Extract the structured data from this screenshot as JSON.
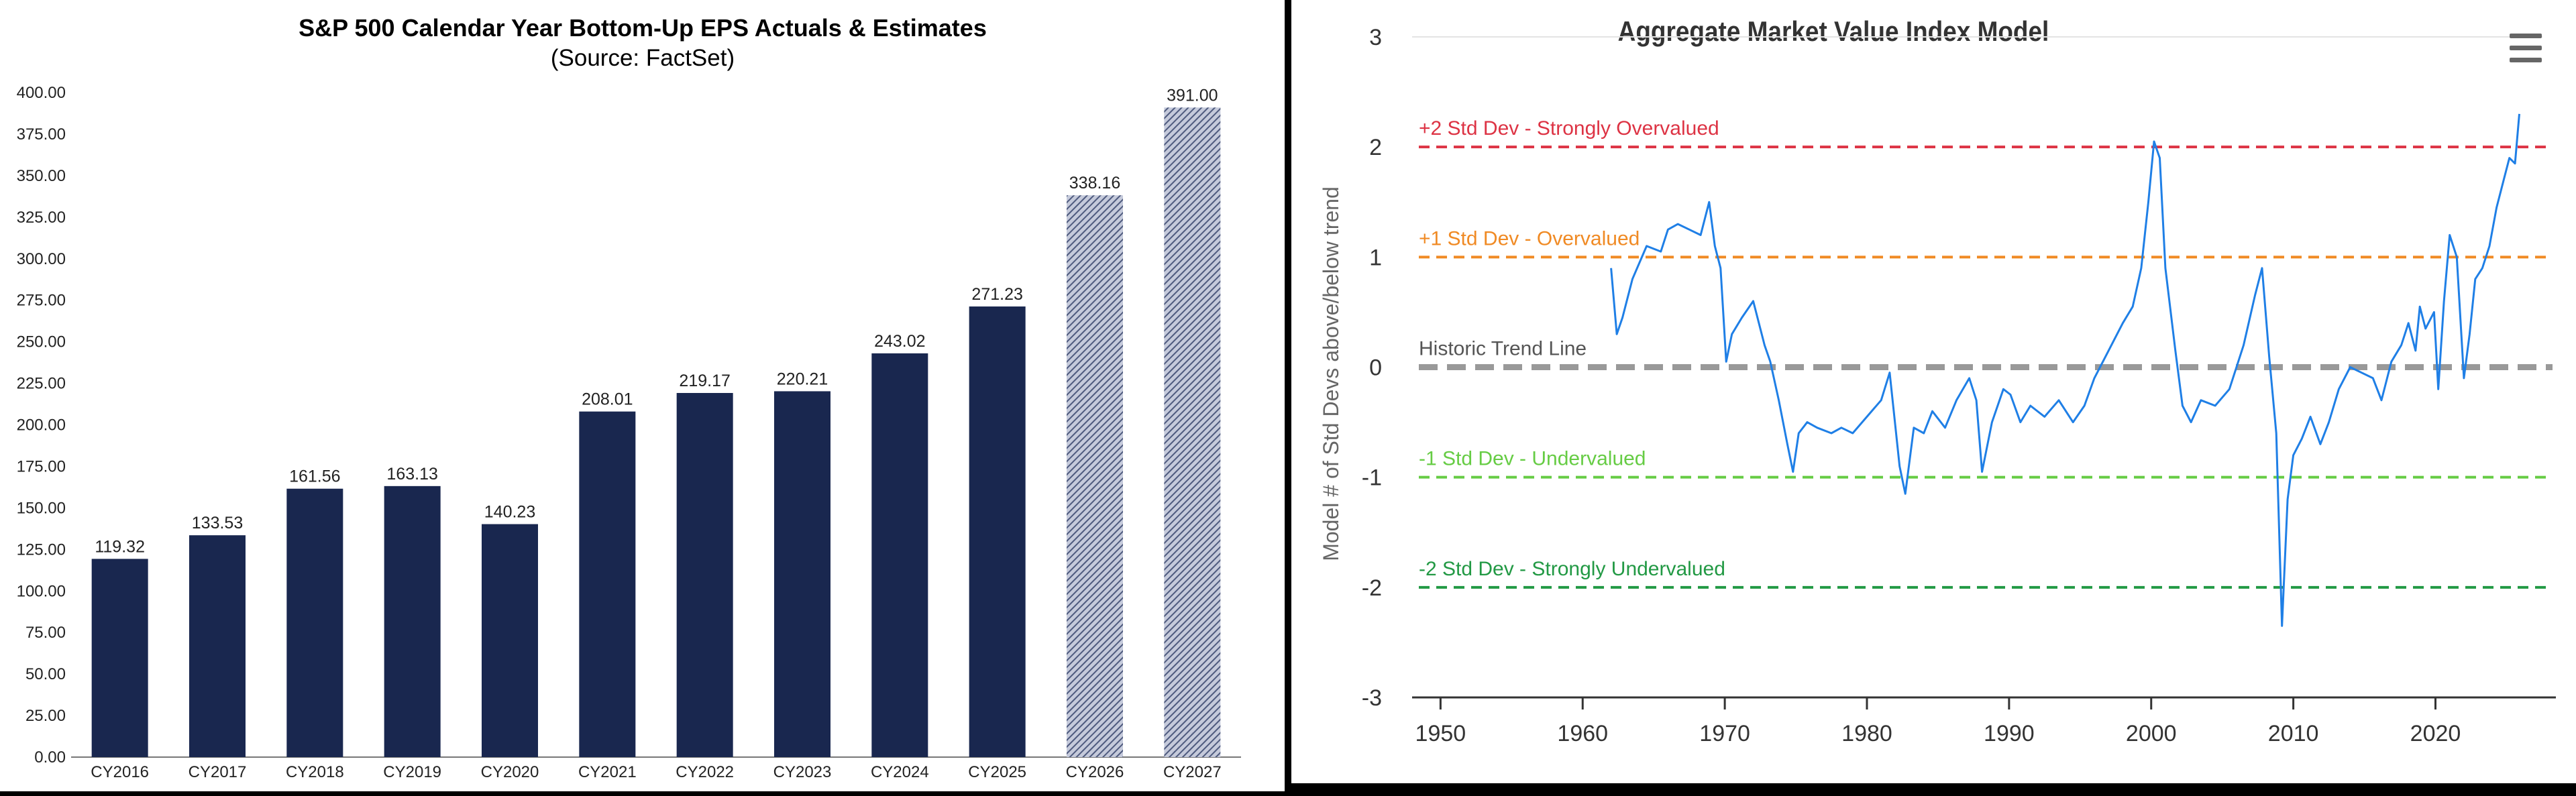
{
  "chart_data": [
    {
      "type": "bar",
      "title": "S&P 500 Calendar Year Bottom-Up EPS Actuals & Estimates",
      "subtitle": "(Source: FactSet)",
      "categories": [
        "CY2016",
        "CY2017",
        "CY2018",
        "CY2019",
        "CY2020",
        "CY2021",
        "CY2022",
        "CY2023",
        "CY2024",
        "CY2025",
        "CY2026",
        "CY2027"
      ],
      "values": [
        119.32,
        133.53,
        161.56,
        163.13,
        140.23,
        208.01,
        219.17,
        220.21,
        243.02,
        271.23,
        338.16,
        391.0
      ],
      "value_labels": [
        "119.32",
        "133.53",
        "161.56",
        "163.13",
        "140.23",
        "208.01",
        "219.17",
        "220.21",
        "243.02",
        "271.23",
        "338.16",
        "391.00"
      ],
      "estimate_flags": [
        false,
        false,
        false,
        false,
        false,
        false,
        false,
        false,
        false,
        false,
        true,
        true
      ],
      "ylim": [
        0,
        400
      ],
      "yticks": [
        "0.00",
        "25.00",
        "50.00",
        "75.00",
        "100.00",
        "125.00",
        "150.00",
        "175.00",
        "200.00",
        "225.00",
        "250.00",
        "275.00",
        "300.00",
        "325.00",
        "350.00",
        "375.00",
        "400.00"
      ],
      "xlabel": "",
      "ylabel": "",
      "grid": false,
      "colors": {
        "actual": "#19274f",
        "estimate": "#5c6788",
        "hatch_light": "#c5cadb"
      }
    },
    {
      "type": "line",
      "title": "Aggregate Market Value Index Model",
      "ylabel": "Model # of Std Devs above/below trend",
      "xlabel": "",
      "xlim": [
        1948,
        2028
      ],
      "ylim": [
        -3,
        3
      ],
      "xticks": [
        "1950",
        "1960",
        "1970",
        "1980",
        "1990",
        "2000",
        "2010",
        "2020"
      ],
      "yticks": [
        "3",
        "2",
        "1",
        "0",
        "-1",
        "-2",
        "-3"
      ],
      "reference_lines": [
        {
          "label": "+2 Std Dev - Strongly Overvalued",
          "value": 2,
          "color": "#dd3344"
        },
        {
          "label": "+1 Std Dev - Overvalued",
          "value": 1,
          "color": "#f08a24"
        },
        {
          "label": "Historic Trend Line",
          "value": 0,
          "color": "#999999"
        },
        {
          "label": "-1 Std Dev - Undervalued",
          "value": -1,
          "color": "#66cc44"
        },
        {
          "label": "-2 Std Dev - Strongly Undervalued",
          "value": -2,
          "color": "#229944"
        }
      ],
      "series": [
        {
          "color": "#1f7fe6",
          "x": [
            1962,
            1962.4,
            1962.8,
            1963.5,
            1964.5,
            1965.5,
            1966,
            1966.7,
            1967.5,
            1968.3,
            1968.9,
            1969.3,
            1969.7,
            1970.1,
            1970.5,
            1971.2,
            1972,
            1972.8,
            1973.2,
            1973.8,
            1974.4,
            1974.8,
            1975.2,
            1975.8,
            1976.5,
            1977.5,
            1978.2,
            1979,
            1980,
            1981,
            1981.6,
            1982.3,
            1982.7,
            1983.3,
            1984,
            1984.6,
            1985.5,
            1986.3,
            1987.2,
            1987.7,
            1988.1,
            1988.8,
            1989.6,
            1990.1,
            1990.8,
            1991.5,
            1992.5,
            1993.5,
            1994.5,
            1995.3,
            1996,
            1997,
            1998,
            1998.7,
            1999.3,
            1999.8,
            2000.2,
            2000.6,
            2001,
            2001.7,
            2002.2,
            2002.8,
            2003.5,
            2004.5,
            2005.5,
            2006.5,
            2007.3,
            2007.8,
            2008.3,
            2008.8,
            2009.2,
            2009.6,
            2010,
            2010.6,
            2011.2,
            2011.9,
            2012.5,
            2013.2,
            2014,
            2014.8,
            2015.6,
            2016.2,
            2016.9,
            2017.6,
            2018.1,
            2018.6,
            2018.9,
            2019.3,
            2019.9,
            2020.2,
            2020.6,
            2021,
            2021.5,
            2022,
            2022.4,
            2022.8,
            2023.3,
            2023.8,
            2024.3,
            2024.8,
            2025.2,
            2025.6,
            2025.9
          ],
          "values": [
            0.9,
            0.3,
            0.45,
            0.8,
            1.1,
            1.05,
            1.25,
            1.3,
            1.25,
            1.2,
            1.5,
            1.1,
            0.9,
            0.05,
            0.3,
            0.45,
            0.6,
            0.2,
            0.05,
            -0.3,
            -0.7,
            -0.95,
            -0.6,
            -0.5,
            -0.55,
            -0.6,
            -0.55,
            -0.6,
            -0.45,
            -0.3,
            -0.05,
            -0.9,
            -1.15,
            -0.55,
            -0.6,
            -0.4,
            -0.55,
            -0.3,
            -0.1,
            -0.3,
            -0.95,
            -0.5,
            -0.2,
            -0.25,
            -0.5,
            -0.35,
            -0.45,
            -0.3,
            -0.5,
            -0.35,
            -0.1,
            0.15,
            0.4,
            0.55,
            0.9,
            1.5,
            2.05,
            1.9,
            0.9,
            0.15,
            -0.35,
            -0.5,
            -0.3,
            -0.35,
            -0.2,
            0.2,
            0.65,
            0.9,
            0.1,
            -0.6,
            -2.35,
            -1.2,
            -0.8,
            -0.65,
            -0.45,
            -0.7,
            -0.5,
            -0.2,
            0.0,
            -0.05,
            -0.1,
            -0.3,
            0.05,
            0.2,
            0.4,
            0.15,
            0.55,
            0.35,
            0.5,
            -0.2,
            0.6,
            1.2,
            1.0,
            -0.1,
            0.3,
            0.8,
            0.9,
            1.1,
            1.45,
            1.7,
            1.9,
            1.85,
            2.3
          ]
        }
      ]
    }
  ]
}
